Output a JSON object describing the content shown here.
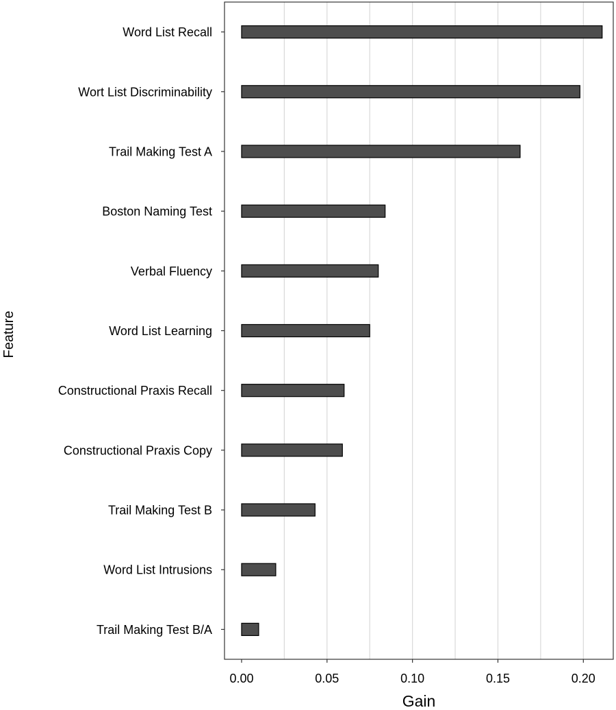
{
  "chart_data": {
    "type": "bar",
    "orientation": "horizontal",
    "title": "",
    "xlabel": "Gain",
    "ylabel": "Feature",
    "xlim": [
      -0.01,
      0.2175
    ],
    "xticks": [
      0.0,
      0.05,
      0.1,
      0.15,
      0.2
    ],
    "xtick_labels": [
      "0.00",
      "0.05",
      "0.10",
      "0.15",
      "0.20"
    ],
    "grid": "vertical major and minor lines",
    "legend": "none",
    "categories": [
      "Word List Recall",
      "Wort List Discriminability",
      "Trail Making Test A",
      "Boston Naming Test",
      "Verbal Fluency",
      "Word List Learning",
      "Constructional Praxis Recall",
      "Constructional Praxis Copy",
      "Trail Making Test B",
      "Word List Intrusions",
      "Trail Making Test B/A"
    ],
    "values": [
      0.211,
      0.198,
      0.163,
      0.084,
      0.08,
      0.075,
      0.06,
      0.059,
      0.043,
      0.02,
      0.01
    ],
    "bar_color": "#4d4d4d",
    "bar_border_color": "#000000",
    "grid_color": "#d9d9d9"
  }
}
